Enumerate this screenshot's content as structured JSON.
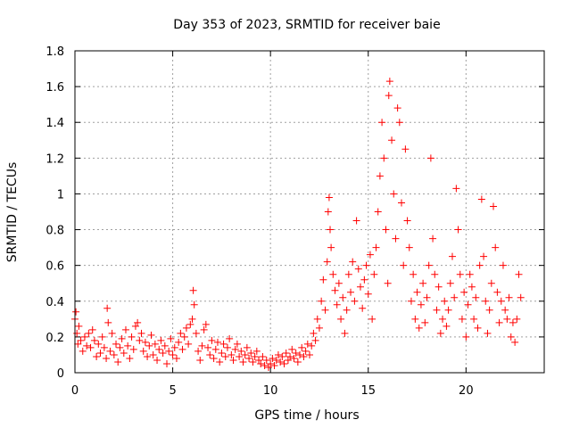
{
  "chart_data": {
    "type": "scatter",
    "title": "Day 353 of 2023, SRMTID for receiver baie",
    "xlabel": "GPS time / hours",
    "ylabel": "SRMTID / TECUs",
    "xlim": [
      0,
      24
    ],
    "ylim": [
      0,
      1.8
    ],
    "xticks": [
      0,
      5,
      10,
      15,
      20
    ],
    "xtick_labels": [
      "0",
      "5",
      "10",
      "15",
      "20"
    ],
    "yticks": [
      0,
      0.2,
      0.4,
      0.6,
      0.8,
      1,
      1.2,
      1.4,
      1.6,
      1.8
    ],
    "ytick_labels": [
      "0",
      "0.2",
      "0.4",
      "0.6",
      "0.8",
      "1",
      "1.2",
      "1.4",
      "1.6",
      "1.8"
    ],
    "grid": true,
    "marker": "+",
    "color": "#ff0000",
    "series": [
      {
        "name": "baie",
        "points": [
          [
            0.0,
            0.3
          ],
          [
            0.05,
            0.34
          ],
          [
            0.1,
            0.22
          ],
          [
            0.15,
            0.16
          ],
          [
            0.2,
            0.26
          ],
          [
            0.3,
            0.18
          ],
          [
            0.4,
            0.12
          ],
          [
            0.5,
            0.2
          ],
          [
            0.6,
            0.15
          ],
          [
            0.7,
            0.22
          ],
          [
            0.8,
            0.14
          ],
          [
            0.9,
            0.24
          ],
          [
            1.0,
            0.18
          ],
          [
            1.1,
            0.09
          ],
          [
            1.2,
            0.16
          ],
          [
            1.3,
            0.11
          ],
          [
            1.4,
            0.2
          ],
          [
            1.5,
            0.14
          ],
          [
            1.6,
            0.08
          ],
          [
            1.65,
            0.36
          ],
          [
            1.7,
            0.28
          ],
          [
            1.8,
            0.12
          ],
          [
            1.9,
            0.22
          ],
          [
            2.0,
            0.1
          ],
          [
            2.1,
            0.16
          ],
          [
            2.2,
            0.06
          ],
          [
            2.3,
            0.14
          ],
          [
            2.4,
            0.19
          ],
          [
            2.5,
            0.11
          ],
          [
            2.6,
            0.24
          ],
          [
            2.7,
            0.15
          ],
          [
            2.8,
            0.08
          ],
          [
            2.9,
            0.2
          ],
          [
            3.0,
            0.13
          ],
          [
            3.1,
            0.26
          ],
          [
            3.2,
            0.28
          ],
          [
            3.3,
            0.18
          ],
          [
            3.4,
            0.22
          ],
          [
            3.5,
            0.12
          ],
          [
            3.6,
            0.17
          ],
          [
            3.7,
            0.09
          ],
          [
            3.8,
            0.15
          ],
          [
            3.9,
            0.21
          ],
          [
            4.0,
            0.1
          ],
          [
            4.1,
            0.16
          ],
          [
            4.2,
            0.07
          ],
          [
            4.3,
            0.13
          ],
          [
            4.4,
            0.18
          ],
          [
            4.5,
            0.11
          ],
          [
            4.6,
            0.15
          ],
          [
            4.7,
            0.05
          ],
          [
            4.8,
            0.12
          ],
          [
            4.9,
            0.19
          ],
          [
            5.0,
            0.1
          ],
          [
            5.1,
            0.14
          ],
          [
            5.2,
            0.08
          ],
          [
            5.3,
            0.17
          ],
          [
            5.4,
            0.22
          ],
          [
            5.5,
            0.13
          ],
          [
            5.6,
            0.2
          ],
          [
            5.7,
            0.25
          ],
          [
            5.8,
            0.16
          ],
          [
            5.9,
            0.27
          ],
          [
            6.0,
            0.3
          ],
          [
            6.05,
            0.46
          ],
          [
            6.1,
            0.38
          ],
          [
            6.2,
            0.22
          ],
          [
            6.3,
            0.12
          ],
          [
            6.4,
            0.07
          ],
          [
            6.5,
            0.15
          ],
          [
            6.6,
            0.24
          ],
          [
            6.7,
            0.27
          ],
          [
            6.8,
            0.14
          ],
          [
            6.9,
            0.1
          ],
          [
            7.0,
            0.18
          ],
          [
            7.1,
            0.08
          ],
          [
            7.2,
            0.13
          ],
          [
            7.3,
            0.17
          ],
          [
            7.4,
            0.06
          ],
          [
            7.5,
            0.11
          ],
          [
            7.6,
            0.16
          ],
          [
            7.7,
            0.09
          ],
          [
            7.8,
            0.14
          ],
          [
            7.9,
            0.19
          ],
          [
            8.0,
            0.1
          ],
          [
            8.1,
            0.07
          ],
          [
            8.2,
            0.13
          ],
          [
            8.3,
            0.16
          ],
          [
            8.4,
            0.09
          ],
          [
            8.5,
            0.12
          ],
          [
            8.6,
            0.06
          ],
          [
            8.7,
            0.1
          ],
          [
            8.8,
            0.14
          ],
          [
            8.9,
            0.08
          ],
          [
            9.0,
            0.11
          ],
          [
            9.1,
            0.06
          ],
          [
            9.2,
            0.09
          ],
          [
            9.3,
            0.12
          ],
          [
            9.4,
            0.07
          ],
          [
            9.5,
            0.05
          ],
          [
            9.6,
            0.09
          ],
          [
            9.7,
            0.04
          ],
          [
            9.8,
            0.07
          ],
          [
            9.9,
            0.03
          ],
          [
            10.0,
            0.05
          ],
          [
            10.1,
            0.08
          ],
          [
            10.2,
            0.04
          ],
          [
            10.3,
            0.07
          ],
          [
            10.4,
            0.1
          ],
          [
            10.5,
            0.06
          ],
          [
            10.6,
            0.09
          ],
          [
            10.7,
            0.05
          ],
          [
            10.8,
            0.11
          ],
          [
            10.9,
            0.07
          ],
          [
            11.0,
            0.09
          ],
          [
            11.1,
            0.13
          ],
          [
            11.2,
            0.08
          ],
          [
            11.3,
            0.11
          ],
          [
            11.4,
            0.06
          ],
          [
            11.5,
            0.1
          ],
          [
            11.6,
            0.14
          ],
          [
            11.7,
            0.09
          ],
          [
            11.8,
            0.12
          ],
          [
            11.9,
            0.16
          ],
          [
            12.0,
            0.1
          ],
          [
            12.1,
            0.15
          ],
          [
            12.2,
            0.22
          ],
          [
            12.3,
            0.18
          ],
          [
            12.4,
            0.3
          ],
          [
            12.5,
            0.25
          ],
          [
            12.6,
            0.4
          ],
          [
            12.7,
            0.52
          ],
          [
            12.8,
            0.35
          ],
          [
            12.9,
            0.62
          ],
          [
            12.95,
            0.9
          ],
          [
            13.0,
            0.98
          ],
          [
            13.05,
            0.8
          ],
          [
            13.1,
            0.7
          ],
          [
            13.2,
            0.55
          ],
          [
            13.3,
            0.46
          ],
          [
            13.4,
            0.38
          ],
          [
            13.5,
            0.5
          ],
          [
            13.6,
            0.3
          ],
          [
            13.7,
            0.42
          ],
          [
            13.8,
            0.22
          ],
          [
            13.9,
            0.35
          ],
          [
            14.0,
            0.55
          ],
          [
            14.1,
            0.45
          ],
          [
            14.2,
            0.62
          ],
          [
            14.3,
            0.4
          ],
          [
            14.4,
            0.85
          ],
          [
            14.5,
            0.58
          ],
          [
            14.6,
            0.48
          ],
          [
            14.7,
            0.36
          ],
          [
            14.8,
            0.52
          ],
          [
            14.9,
            0.6
          ],
          [
            15.0,
            0.44
          ],
          [
            15.1,
            0.66
          ],
          [
            15.2,
            0.3
          ],
          [
            15.3,
            0.55
          ],
          [
            15.4,
            0.7
          ],
          [
            15.5,
            0.9
          ],
          [
            15.6,
            1.1
          ],
          [
            15.7,
            1.4
          ],
          [
            15.8,
            1.2
          ],
          [
            15.9,
            0.8
          ],
          [
            16.0,
            0.5
          ],
          [
            16.05,
            1.55
          ],
          [
            16.1,
            1.63
          ],
          [
            16.2,
            1.3
          ],
          [
            16.3,
            1.0
          ],
          [
            16.4,
            0.75
          ],
          [
            16.5,
            1.48
          ],
          [
            16.6,
            1.4
          ],
          [
            16.7,
            0.95
          ],
          [
            16.8,
            0.6
          ],
          [
            16.9,
            1.25
          ],
          [
            17.0,
            0.85
          ],
          [
            17.1,
            0.7
          ],
          [
            17.2,
            0.4
          ],
          [
            17.3,
            0.55
          ],
          [
            17.4,
            0.3
          ],
          [
            17.5,
            0.45
          ],
          [
            17.6,
            0.25
          ],
          [
            17.7,
            0.38
          ],
          [
            17.8,
            0.5
          ],
          [
            17.9,
            0.28
          ],
          [
            18.0,
            0.42
          ],
          [
            18.1,
            0.6
          ],
          [
            18.2,
            1.2
          ],
          [
            18.3,
            0.75
          ],
          [
            18.4,
            0.55
          ],
          [
            18.5,
            0.35
          ],
          [
            18.6,
            0.48
          ],
          [
            18.7,
            0.22
          ],
          [
            18.8,
            0.3
          ],
          [
            18.9,
            0.4
          ],
          [
            19.0,
            0.26
          ],
          [
            19.1,
            0.35
          ],
          [
            19.2,
            0.5
          ],
          [
            19.3,
            0.65
          ],
          [
            19.4,
            0.42
          ],
          [
            19.5,
            1.03
          ],
          [
            19.6,
            0.8
          ],
          [
            19.7,
            0.55
          ],
          [
            19.8,
            0.3
          ],
          [
            19.9,
            0.45
          ],
          [
            20.0,
            0.2
          ],
          [
            20.1,
            0.38
          ],
          [
            20.2,
            0.55
          ],
          [
            20.3,
            0.48
          ],
          [
            20.4,
            0.3
          ],
          [
            20.5,
            0.42
          ],
          [
            20.6,
            0.25
          ],
          [
            20.7,
            0.6
          ],
          [
            20.8,
            0.97
          ],
          [
            20.9,
            0.65
          ],
          [
            21.0,
            0.4
          ],
          [
            21.1,
            0.22
          ],
          [
            21.2,
            0.35
          ],
          [
            21.3,
            0.5
          ],
          [
            21.4,
            0.93
          ],
          [
            21.5,
            0.7
          ],
          [
            21.6,
            0.45
          ],
          [
            21.7,
            0.28
          ],
          [
            21.8,
            0.4
          ],
          [
            21.9,
            0.6
          ],
          [
            22.0,
            0.35
          ],
          [
            22.1,
            0.3
          ],
          [
            22.2,
            0.42
          ],
          [
            22.3,
            0.2
          ],
          [
            22.4,
            0.28
          ],
          [
            22.5,
            0.17
          ],
          [
            22.6,
            0.3
          ],
          [
            22.7,
            0.55
          ],
          [
            22.8,
            0.42
          ]
        ]
      }
    ]
  }
}
